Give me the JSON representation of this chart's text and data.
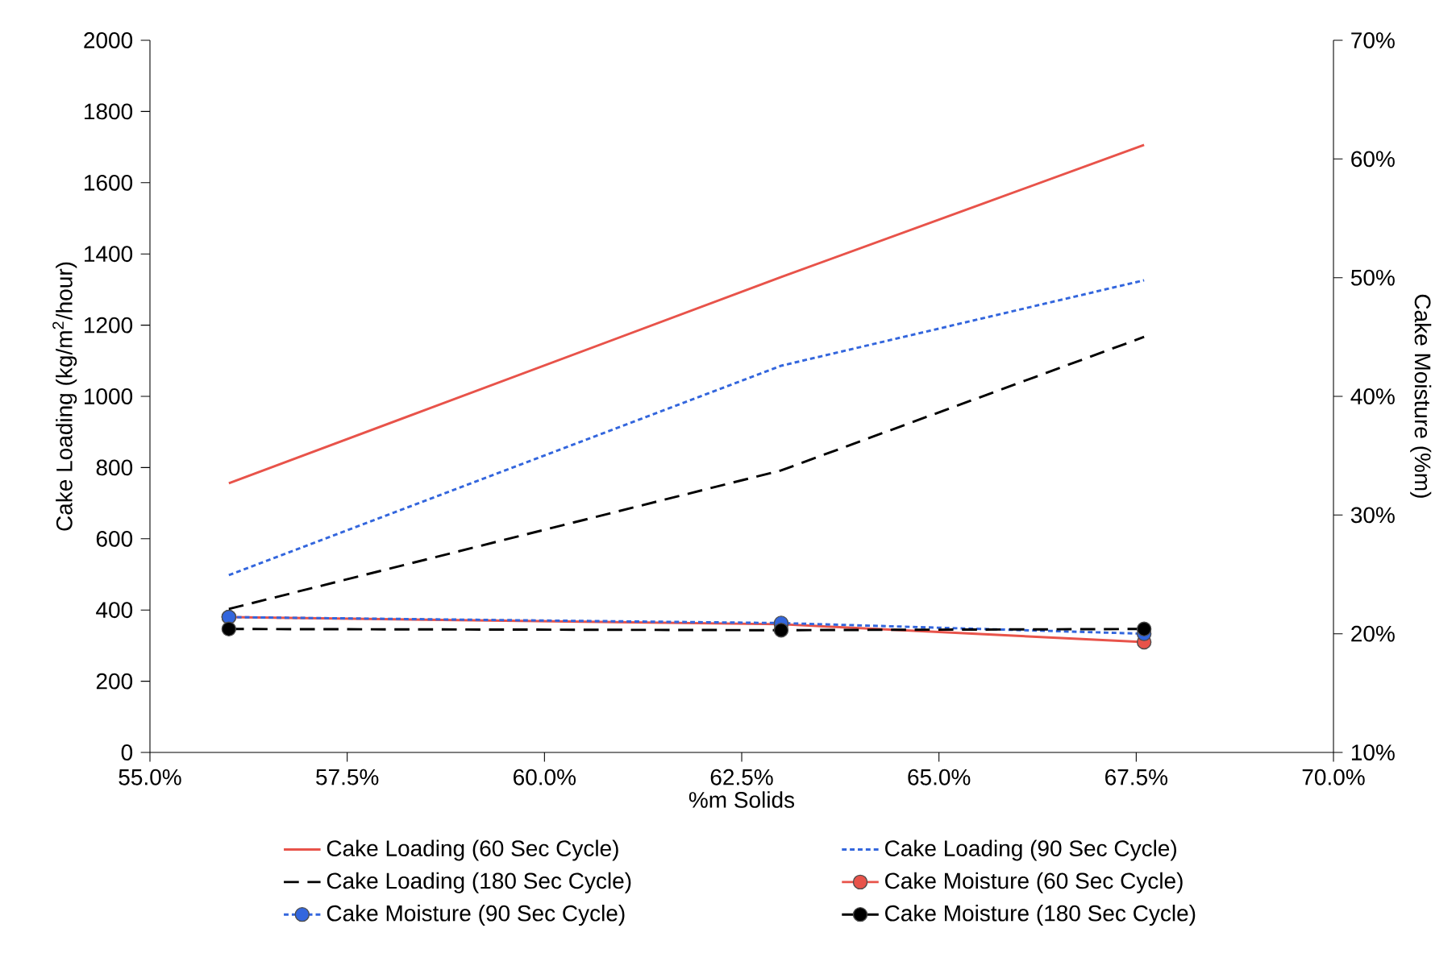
{
  "chart_data": {
    "type": "line",
    "xlabel": "%m Solids",
    "ylabel": "Cake Loading (kg/m$^{2}$/hour)",
    "y2label": "Cake Moisture (%m)",
    "xlim": [
      55,
      70
    ],
    "xticks": [
      {
        "value": 55,
        "label": "55.0%"
      },
      {
        "value": 57.5,
        "label": "57.5%"
      },
      {
        "value": 60,
        "label": "60.0%"
      },
      {
        "value": 62.5,
        "label": "62.5%"
      },
      {
        "value": 65,
        "label": "65.0%"
      },
      {
        "value": 67.5,
        "label": "67.5%"
      },
      {
        "value": 70,
        "label": "70.0%"
      }
    ],
    "ylim": [
      0,
      2000
    ],
    "yticks": [
      0,
      200,
      400,
      600,
      800,
      1000,
      1200,
      1400,
      1600,
      1800,
      2000
    ],
    "y2lim": [
      10,
      70
    ],
    "y2ticks": [
      {
        "value": 10,
        "label": "10%"
      },
      {
        "value": 20,
        "label": "20%"
      },
      {
        "value": 30,
        "label": "30%"
      },
      {
        "value": 40,
        "label": "40%"
      },
      {
        "value": 50,
        "label": "50%"
      },
      {
        "value": 60,
        "label": "60%"
      },
      {
        "value": 70,
        "label": "70%"
      }
    ],
    "x": [
      56.0,
      63.0,
      67.6
    ],
    "legend": "bottom",
    "grid": false,
    "series": [
      {
        "name": "Cake Loading (60 Sec Cycle)",
        "color": "#e8534a",
        "line_style": "solid",
        "marker": "none",
        "values": [
          756,
          1335,
          1706
        ]
      },
      {
        "name": "Cake Loading (90 Sec Cycle)",
        "color": "#3366dd",
        "line_style": "dotted",
        "marker": "none",
        "values": [
          498,
          1086,
          1326
        ]
      },
      {
        "name": "Cake Loading (180 Sec Cycle)",
        "color": "#000000",
        "line_style": "dashed",
        "marker": "none",
        "values": [
          403,
          792,
          1167
        ]
      },
      {
        "name": "Cake Moisture (60 Sec Cycle)",
        "color": "#e8534a",
        "line_style": "solid",
        "marker": "circle",
        "axis": "y2",
        "values": [
          21.4,
          20.8,
          19.3
        ]
      },
      {
        "name": "Cake Moisture (90 Sec Cycle)",
        "color": "#3366dd",
        "line_style": "dotted",
        "marker": "circle",
        "axis": "y2",
        "values": [
          21.4,
          20.9,
          20.0
        ]
      },
      {
        "name": "Cake Moisture (180 Sec Cycle)",
        "color": "#000000",
        "line_style": "dashed",
        "marker": "circle",
        "axis": "y2",
        "values": [
          20.4,
          20.3,
          20.4
        ]
      }
    ]
  }
}
